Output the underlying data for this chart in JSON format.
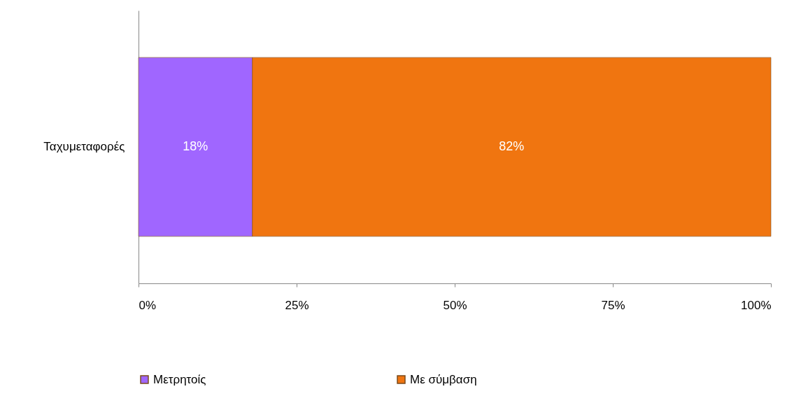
{
  "chart_data": {
    "type": "bar",
    "orientation": "horizontal",
    "stacked": true,
    "categories": [
      "Ταχυμεταφορές"
    ],
    "series": [
      {
        "name": "Μετρητοίς",
        "color": "#a066ff",
        "values": [
          18
        ],
        "value_labels": [
          "18%"
        ]
      },
      {
        "name": "Με σύμβαση",
        "color": "#f07510",
        "values": [
          82
        ],
        "value_labels": [
          "82%"
        ]
      }
    ],
    "xlim": [
      0,
      100
    ],
    "xticks": [
      {
        "value": 0,
        "label": "0%"
      },
      {
        "value": 25,
        "label": "25%"
      },
      {
        "value": 50,
        "label": "50%"
      },
      {
        "value": 75,
        "label": "75%"
      },
      {
        "value": 100,
        "label": "100%"
      }
    ],
    "grid": false,
    "legend": "bottom"
  }
}
